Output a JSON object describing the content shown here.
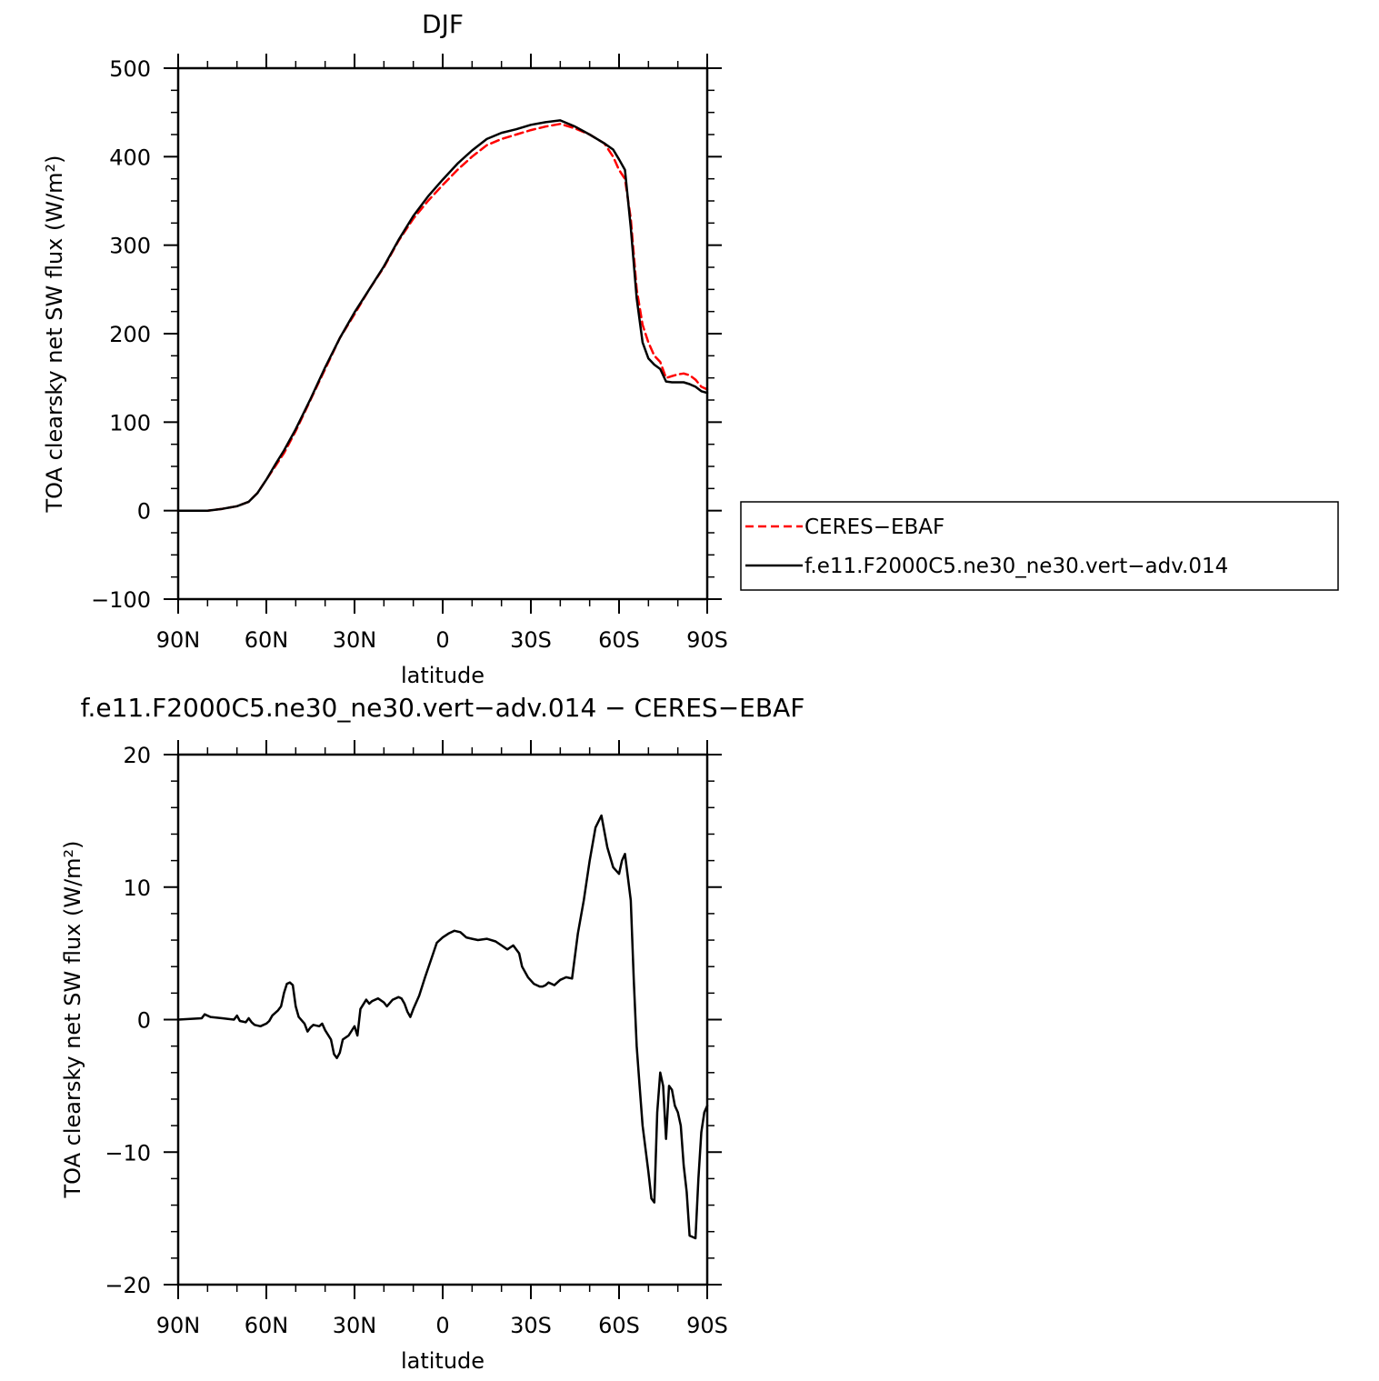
{
  "chart_data": [
    {
      "type": "line",
      "title": "DJF",
      "xlabel": "latitude",
      "ylabel": "TOA clearsky net SW flux (W/m²)",
      "xlim": [
        90,
        -90
      ],
      "ylim": [
        -100,
        500
      ],
      "xticks": [
        90,
        60,
        30,
        0,
        -30,
        -60,
        -90
      ],
      "xticklabels": [
        "90N",
        "60N",
        "30N",
        "0",
        "30S",
        "60S",
        "90S"
      ],
      "yticks": [
        -100,
        0,
        100,
        200,
        300,
        400,
        500
      ],
      "yticklabels": [
        "−100",
        "0",
        "100",
        "200",
        "300",
        "400",
        "500"
      ],
      "legend": "right",
      "series": [
        {
          "name": "CERES−EBAF",
          "color": "#ff0000",
          "style": "dashed",
          "x": [
            90,
            85,
            80,
            75,
            70,
            66,
            63,
            60,
            57,
            54,
            50,
            45,
            40,
            35,
            30,
            25,
            20,
            15,
            10,
            5,
            0,
            -5,
            -10,
            -15,
            -20,
            -25,
            -30,
            -35,
            -40,
            -45,
            -50,
            -55,
            -58,
            -60,
            -62,
            -64,
            -66,
            -68,
            -70,
            -72,
            -74,
            -76,
            -78,
            -80,
            -82,
            -84,
            -86,
            -88,
            -90
          ],
          "y": [
            0,
            0,
            0,
            2,
            5,
            10,
            20,
            35,
            50,
            65,
            90,
            125,
            160,
            195,
            222,
            250,
            275,
            305,
            330,
            350,
            368,
            385,
            400,
            413,
            420,
            425,
            430,
            434,
            437,
            432,
            425,
            415,
            400,
            385,
            375,
            330,
            250,
            210,
            190,
            175,
            168,
            150,
            152,
            154,
            155,
            153,
            148,
            140,
            137
          ]
        },
        {
          "name": "f.e11.F2000C5.ne30_ne30.vert−adv.014",
          "color": "#000000",
          "style": "solid",
          "x": [
            90,
            85,
            80,
            75,
            70,
            66,
            63,
            60,
            57,
            54,
            50,
            45,
            40,
            35,
            30,
            25,
            20,
            15,
            10,
            5,
            0,
            -5,
            -10,
            -15,
            -20,
            -25,
            -30,
            -35,
            -40,
            -45,
            -50,
            -55,
            -58,
            -60,
            -62,
            -64,
            -66,
            -68,
            -70,
            -72,
            -74,
            -76,
            -78,
            -80,
            -82,
            -84,
            -86,
            -88,
            -90
          ],
          "y": [
            0,
            0,
            0,
            2,
            5,
            10,
            20,
            35,
            52,
            68,
            92,
            126,
            162,
            195,
            224,
            250,
            276,
            306,
            333,
            355,
            374,
            392,
            407,
            420,
            427,
            431,
            436,
            439,
            441,
            434,
            425,
            415,
            408,
            397,
            385,
            320,
            240,
            190,
            172,
            165,
            160,
            146,
            145,
            145,
            145,
            143,
            140,
            135,
            133
          ]
        }
      ]
    },
    {
      "type": "line",
      "title": "f.e11.F2000C5.ne30_ne30.vert−adv.014 − CERES−EBAF",
      "xlabel": "latitude",
      "ylabel": "TOA clearsky net SW flux (W/m²)",
      "xlim": [
        90,
        -90
      ],
      "ylim": [
        -20,
        20
      ],
      "xticks": [
        90,
        60,
        30,
        0,
        -30,
        -60,
        -90
      ],
      "xticklabels": [
        "90N",
        "60N",
        "30N",
        "0",
        "30S",
        "60S",
        "90S"
      ],
      "yticks": [
        -20,
        -10,
        0,
        10,
        20
      ],
      "yticklabels": [
        "−20",
        "−10",
        "0",
        "10",
        "20"
      ],
      "series": [
        {
          "color": "#000000",
          "style": "solid",
          "x": [
            90,
            82,
            81,
            79,
            75,
            71,
            70,
            69,
            67,
            66,
            65,
            64,
            62,
            60,
            59,
            58,
            56,
            55,
            54,
            53,
            52,
            51,
            50,
            49,
            47,
            46,
            45,
            44,
            42,
            41,
            40,
            38,
            37,
            36,
            35,
            34,
            32,
            30,
            29,
            28,
            26,
            25,
            24,
            22,
            20,
            19,
            17,
            15,
            14,
            13,
            12,
            11,
            10,
            8,
            6,
            4,
            2,
            0,
            -2,
            -4,
            -6,
            -8,
            -10,
            -12,
            -15,
            -18,
            -20,
            -22,
            -24,
            -26,
            -27,
            -29,
            -31,
            -33,
            -34,
            -35,
            -36,
            -37,
            -38,
            -40,
            -42,
            -44,
            -46,
            -48,
            -50,
            -52,
            -54,
            -56,
            -58,
            -60,
            -61,
            -62,
            -64,
            -65,
            -66,
            -67,
            -68,
            -70,
            -71,
            -72,
            -73,
            -74,
            -75,
            -76,
            -77,
            -78,
            -79,
            -80,
            -81,
            -82,
            -83,
            -84,
            -86,
            -87,
            -88,
            -89,
            -90
          ],
          "y": [
            0,
            0.1,
            0.4,
            0.2,
            0.1,
            0.0,
            0.3,
            -0.1,
            -0.2,
            0.1,
            -0.2,
            -0.4,
            -0.5,
            -0.3,
            -0.1,
            0.3,
            0.7,
            1.0,
            2.0,
            2.7,
            2.8,
            2.6,
            1.0,
            0.2,
            -0.3,
            -0.9,
            -0.6,
            -0.4,
            -0.5,
            -0.3,
            -0.8,
            -1.5,
            -2.6,
            -2.9,
            -2.5,
            -1.5,
            -1.2,
            -0.5,
            -1.2,
            0.8,
            1.5,
            1.2,
            1.4,
            1.6,
            1.3,
            1.0,
            1.5,
            1.7,
            1.6,
            1.2,
            0.6,
            0.2,
            0.8,
            1.8,
            3.2,
            4.5,
            5.8,
            6.2,
            6.5,
            6.7,
            6.6,
            6.2,
            6.1,
            6.0,
            6.1,
            5.9,
            5.6,
            5.3,
            5.6,
            5.0,
            4.0,
            3.2,
            2.7,
            2.5,
            2.5,
            2.6,
            2.8,
            2.7,
            2.6,
            3.0,
            3.2,
            3.1,
            6.5,
            9.0,
            12.0,
            14.5,
            15.4,
            13.0,
            11.5,
            11.0,
            12.0,
            12.5,
            9.0,
            3.0,
            -2.0,
            -5.0,
            -8.0,
            -11.5,
            -13.5,
            -13.8,
            -7.0,
            -4.0,
            -5.0,
            -9.0,
            -5.0,
            -5.3,
            -6.5,
            -7.0,
            -8.0,
            -11.0,
            -13.0,
            -16.3,
            -16.5,
            -12.0,
            -8.5,
            -7.0,
            -6.5
          ]
        }
      ]
    }
  ],
  "legend": {
    "entries": [
      "CERES−EBAF",
      "f.e11.F2000C5.ne30_ne30.vert−adv.014"
    ]
  }
}
